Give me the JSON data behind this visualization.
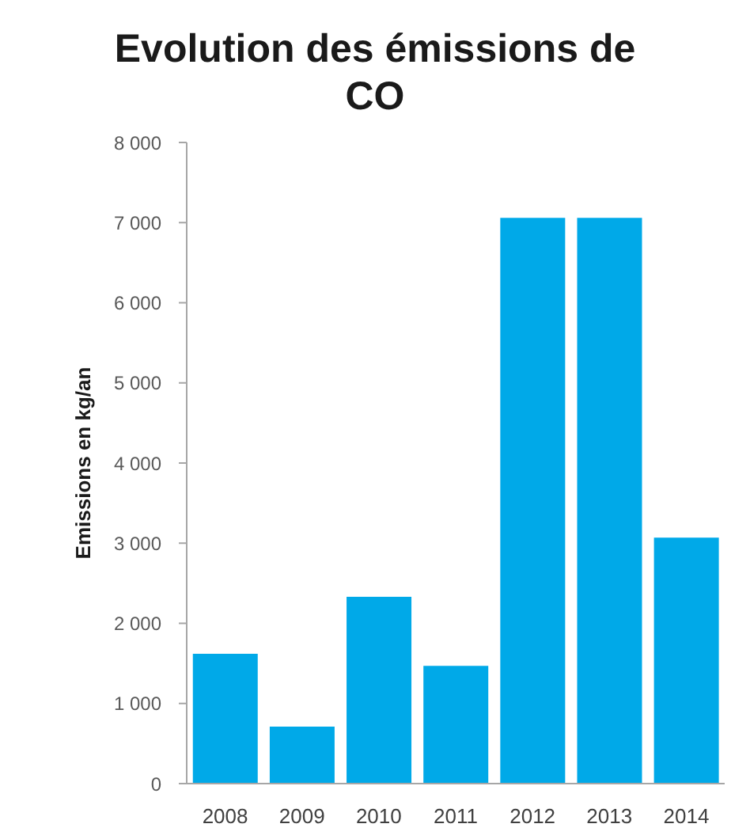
{
  "chart_data": {
    "type": "bar",
    "title": "Evolution des émissions de CO",
    "ylabel": "Emissions en kg/an",
    "categories": [
      "2008",
      "2009",
      "2010",
      "2011",
      "2012",
      "2013",
      "2014"
    ],
    "values": [
      1620,
      710,
      2330,
      1470,
      7060,
      7060,
      3070
    ],
    "color": "#00a9e8",
    "ylim": [
      0,
      8000
    ],
    "yticks": [
      0,
      {
        "value": 1000,
        "label": "1 000"
      },
      {
        "value": 2000,
        "label": "2 000"
      },
      {
        "value": 3000,
        "label": "3 000"
      },
      {
        "value": 4000,
        "label": "4 000"
      },
      {
        "value": 5000,
        "label": "5 000"
      },
      {
        "value": 6000,
        "label": "6 000"
      },
      {
        "value": 7000,
        "label": "7 000"
      },
      {
        "value": 8000,
        "label": "8 000"
      }
    ]
  }
}
